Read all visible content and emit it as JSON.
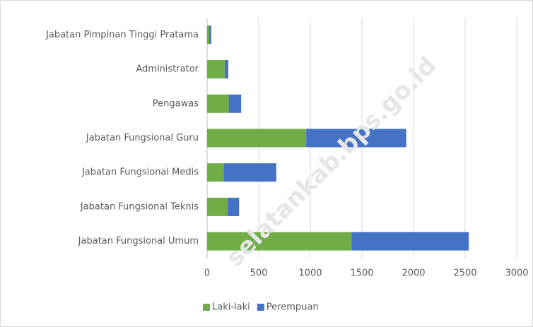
{
  "chart_data": {
    "type": "stacked_bar_horizontal",
    "categories": [
      "Jabatan Pimpinan Tinggi Pratama",
      "Administrator",
      "Pengawas",
      "Jabatan Fungsional Guru",
      "Jabatan Fungsional Medis",
      "Jabatan Fungsional Teknis",
      "Jabatan Fungsional Umum"
    ],
    "series": [
      {
        "name": "Laki-laki",
        "color": "#70ad47",
        "values": [
          20,
          170,
          210,
          960,
          160,
          200,
          1400
        ]
      },
      {
        "name": "Perempuan",
        "color": "#4472c4",
        "values": [
          20,
          35,
          120,
          970,
          510,
          110,
          1135
        ]
      }
    ],
    "xlim": [
      0,
      3000
    ],
    "xticks": [
      0,
      500,
      1000,
      1500,
      2000,
      2500,
      3000
    ],
    "grid": true,
    "legend": "bottom",
    "annotation": "selatankab.bps.go.id"
  }
}
